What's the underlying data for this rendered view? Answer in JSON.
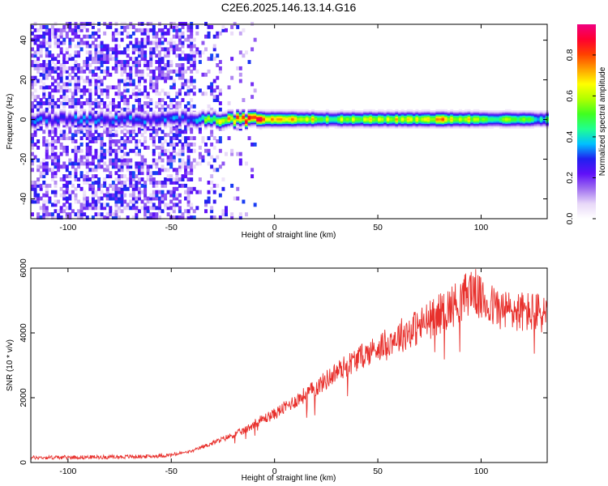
{
  "title": "C2E6.2025.146.13.14.G16",
  "chart_data": [
    {
      "type": "heatmap",
      "xlabel": "Height of straight line (km)",
      "ylabel": "Frequency (Hz)",
      "xlim": [
        -118,
        132
      ],
      "ylim": [
        -50,
        48
      ],
      "xticks": [
        -100,
        -50,
        0,
        50,
        100
      ],
      "yticks": [
        -40,
        -20,
        0,
        20,
        40
      ],
      "colorbar": {
        "label": "Normalized spectral amplitude",
        "range": [
          0,
          0.95
        ],
        "ticks": [
          "0.0",
          "0.2",
          "0.4",
          "0.6",
          "0.8"
        ],
        "colors": [
          "#ffffff",
          "#e8d8f8",
          "#a070f0",
          "#6010f8",
          "#2020f0",
          "#00c0ff",
          "#20ff90",
          "#40ff20",
          "#b0ff00",
          "#ffff00",
          "#ffa000",
          "#ff4000",
          "#ff0030",
          "#f00080"
        ]
      },
      "ridge": {
        "center_frequency_hz": 0,
        "band_half_width_hz": 3,
        "description_values": [
          {
            "x": -40,
            "amplitude": 0.45
          },
          {
            "x": -10,
            "amplitude": 0.9
          },
          {
            "x": 30,
            "amplitude": 0.6
          },
          {
            "x": 80,
            "amplitude": 0.75
          },
          {
            "x": 125,
            "amplitude": 0.5
          }
        ]
      }
    },
    {
      "type": "line",
      "xlabel": "Height of straight line (km)",
      "ylabel": "SNR (10 * v/v)",
      "xlim": [
        -118,
        132
      ],
      "ylim": [
        0,
        6000
      ],
      "xticks": [
        -100,
        -50,
        0,
        50,
        100
      ],
      "yticks": [
        0,
        2000,
        4000,
        6000
      ],
      "series": [
        {
          "color": "#e8302c",
          "x": [
            -118,
            -100,
            -80,
            -60,
            -50,
            -40,
            -30,
            -20,
            -14,
            -10,
            0,
            10,
            20,
            30,
            40,
            50,
            60,
            70,
            80,
            90,
            96,
            100,
            110,
            120,
            132
          ],
          "y": [
            150,
            160,
            170,
            190,
            230,
            350,
            600,
            850,
            1000,
            1200,
            1500,
            1900,
            2300,
            2800,
            3200,
            3550,
            3900,
            4200,
            4600,
            5000,
            5400,
            5000,
            4700,
            4650,
            4600
          ]
        }
      ]
    }
  ]
}
